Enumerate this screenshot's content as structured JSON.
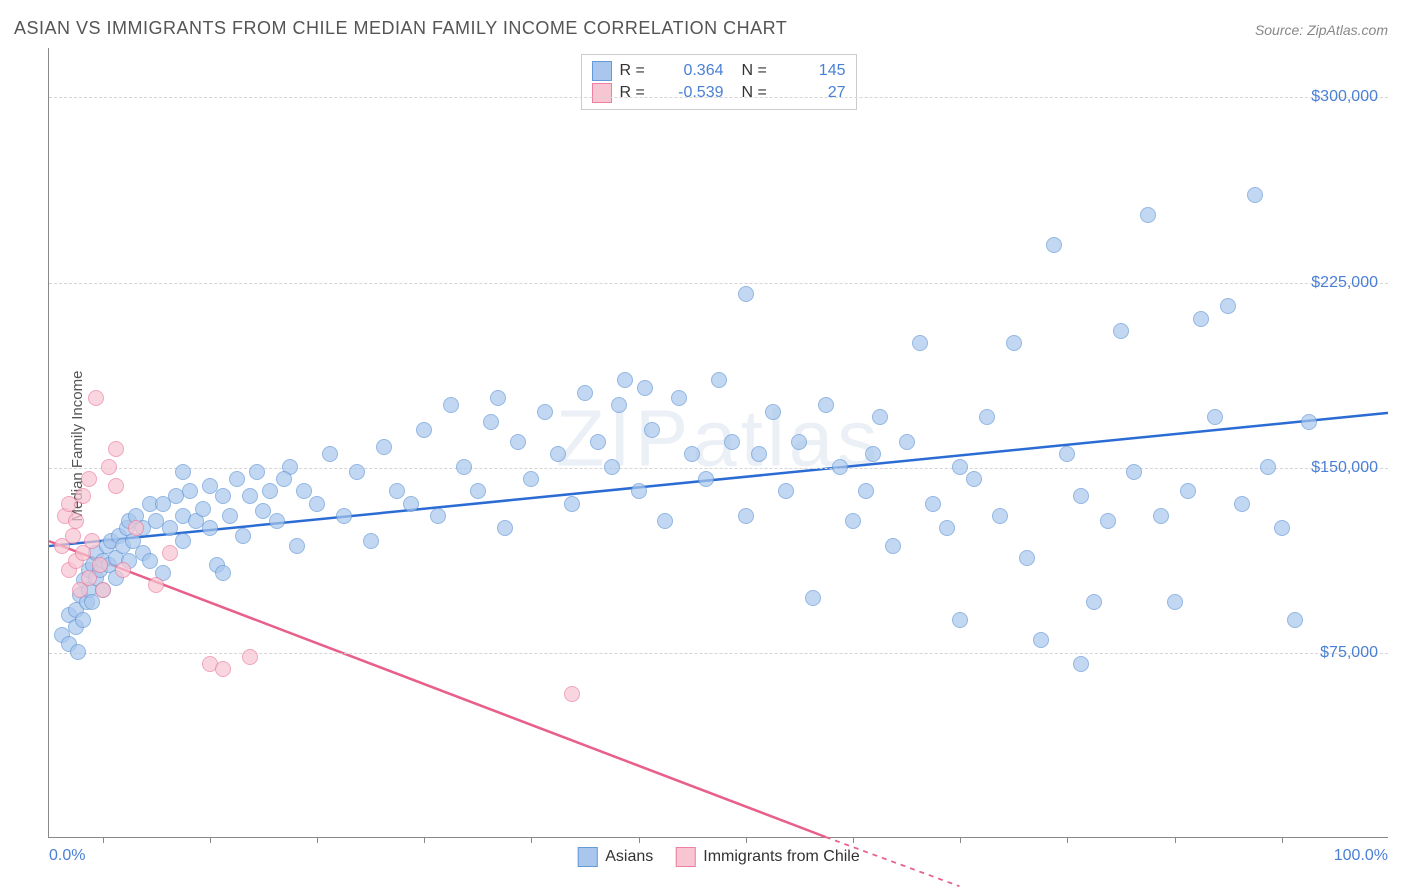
{
  "chart": {
    "type": "scatter",
    "title": "ASIAN VS IMMIGRANTS FROM CHILE MEDIAN FAMILY INCOME CORRELATION CHART",
    "source": "Source: ZipAtlas.com",
    "watermark": "ZIPatlas",
    "ylabel": "Median Family Income",
    "background_color": "#ffffff",
    "grid_color": "#d5d5d5",
    "axis_color": "#888888",
    "text_color": "#555555",
    "value_color": "#4a7fd6",
    "xlim": [
      0,
      100
    ],
    "ylim": [
      0,
      320000
    ],
    "xticks": [
      4,
      12,
      20,
      28,
      36,
      44,
      52,
      60,
      68,
      76,
      84,
      92
    ],
    "xaxis_labels": [
      {
        "pos": 0,
        "text": "0.0%"
      },
      {
        "pos": 100,
        "text": "100.0%"
      }
    ],
    "yticks": [
      {
        "v": 75000,
        "label": "$75,000"
      },
      {
        "v": 150000,
        "label": "$150,000"
      },
      {
        "v": 225000,
        "label": "$225,000"
      },
      {
        "v": 300000,
        "label": "$300,000"
      }
    ],
    "marker_radius": 8,
    "marker_stroke_width": 1.5,
    "marker_fill_opacity": 0.35,
    "trend_line_width": 2.5,
    "series": [
      {
        "name": "Asians",
        "color_fill": "#a9c7ec",
        "color_stroke": "#6699d8",
        "trend_color": "#2b6cd4",
        "R": "0.364",
        "N": "145",
        "trend": {
          "x1": 0,
          "y1": 118000,
          "x2": 100,
          "y2": 172000
        },
        "points": [
          [
            1,
            82000
          ],
          [
            1.5,
            78000
          ],
          [
            1.5,
            90000
          ],
          [
            2,
            85000
          ],
          [
            2,
            92000
          ],
          [
            2.2,
            75000
          ],
          [
            2.3,
            98000
          ],
          [
            2.5,
            88000
          ],
          [
            2.6,
            104000
          ],
          [
            2.8,
            95000
          ],
          [
            3,
            100000
          ],
          [
            3,
            108000
          ],
          [
            3.2,
            95000
          ],
          [
            3.3,
            110000
          ],
          [
            3.5,
            105000
          ],
          [
            3.5,
            115000
          ],
          [
            3.8,
            108000
          ],
          [
            4,
            112000
          ],
          [
            4,
            100000
          ],
          [
            4.3,
            118000
          ],
          [
            4.5,
            110000
          ],
          [
            4.6,
            120000
          ],
          [
            5,
            113000
          ],
          [
            5,
            105000
          ],
          [
            5.2,
            122000
          ],
          [
            5.5,
            118000
          ],
          [
            5.8,
            125000
          ],
          [
            6,
            112000
          ],
          [
            6,
            128000
          ],
          [
            6.3,
            120000
          ],
          [
            6.5,
            130000
          ],
          [
            7,
            125000
          ],
          [
            7,
            115000
          ],
          [
            7.5,
            135000
          ],
          [
            7.5,
            112000
          ],
          [
            8,
            128000
          ],
          [
            8.5,
            135000
          ],
          [
            8.5,
            107000
          ],
          [
            9,
            125000
          ],
          [
            9.5,
            138000
          ],
          [
            10,
            130000
          ],
          [
            10,
            120000
          ],
          [
            10.5,
            140000
          ],
          [
            11,
            128000
          ],
          [
            11.5,
            133000
          ],
          [
            12,
            142000
          ],
          [
            12,
            125000
          ],
          [
            12.5,
            110000
          ],
          [
            13,
            138000
          ],
          [
            13.5,
            130000
          ],
          [
            14,
            145000
          ],
          [
            14.5,
            122000
          ],
          [
            15,
            138000
          ],
          [
            15.5,
            148000
          ],
          [
            16,
            132000
          ],
          [
            16.5,
            140000
          ],
          [
            17,
            128000
          ],
          [
            18,
            150000
          ],
          [
            18.5,
            118000
          ],
          [
            19,
            140000
          ],
          [
            20,
            135000
          ],
          [
            21,
            155000
          ],
          [
            22,
            130000
          ],
          [
            23,
            148000
          ],
          [
            24,
            120000
          ],
          [
            25,
            158000
          ],
          [
            26,
            140000
          ],
          [
            27,
            135000
          ],
          [
            28,
            165000
          ],
          [
            29,
            130000
          ],
          [
            30,
            175000
          ],
          [
            31,
            150000
          ],
          [
            32,
            140000
          ],
          [
            33,
            168000
          ],
          [
            33.5,
            178000
          ],
          [
            34,
            125000
          ],
          [
            35,
            160000
          ],
          [
            36,
            145000
          ],
          [
            37,
            172000
          ],
          [
            38,
            155000
          ],
          [
            39,
            135000
          ],
          [
            40,
            180000
          ],
          [
            41,
            160000
          ],
          [
            42,
            150000
          ],
          [
            42.5,
            175000
          ],
          [
            43,
            185000
          ],
          [
            44,
            140000
          ],
          [
            45,
            165000
          ],
          [
            46,
            128000
          ],
          [
            47,
            178000
          ],
          [
            48,
            155000
          ],
          [
            49,
            145000
          ],
          [
            50,
            185000
          ],
          [
            51,
            160000
          ],
          [
            52,
            220000
          ],
          [
            52,
            130000
          ],
          [
            53,
            155000
          ],
          [
            54,
            172000
          ],
          [
            55,
            140000
          ],
          [
            56,
            160000
          ],
          [
            57,
            97000
          ],
          [
            58,
            175000
          ],
          [
            59,
            150000
          ],
          [
            60,
            128000
          ],
          [
            61,
            140000
          ],
          [
            61.5,
            155000
          ],
          [
            62,
            170000
          ],
          [
            63,
            118000
          ],
          [
            64,
            160000
          ],
          [
            65,
            200000
          ],
          [
            66,
            135000
          ],
          [
            67,
            125000
          ],
          [
            68,
            150000
          ],
          [
            68,
            88000
          ],
          [
            69,
            145000
          ],
          [
            70,
            170000
          ],
          [
            71,
            130000
          ],
          [
            72,
            200000
          ],
          [
            73,
            113000
          ],
          [
            74,
            80000
          ],
          [
            75,
            240000
          ],
          [
            76,
            155000
          ],
          [
            77,
            138000
          ],
          [
            77,
            70000
          ],
          [
            78,
            95000
          ],
          [
            79,
            128000
          ],
          [
            80,
            205000
          ],
          [
            81,
            148000
          ],
          [
            82,
            252000
          ],
          [
            83,
            130000
          ],
          [
            84,
            95000
          ],
          [
            85,
            140000
          ],
          [
            86,
            210000
          ],
          [
            87,
            170000
          ],
          [
            88,
            215000
          ],
          [
            89,
            135000
          ],
          [
            90,
            260000
          ],
          [
            91,
            150000
          ],
          [
            92,
            125000
          ],
          [
            93,
            88000
          ],
          [
            94,
            168000
          ],
          [
            10,
            148000
          ],
          [
            13,
            107000
          ],
          [
            17.5,
            145000
          ],
          [
            44.5,
            182000
          ]
        ]
      },
      {
        "name": "Immigrants from Chile",
        "color_fill": "#f7c6d2",
        "color_stroke": "#ec7fa2",
        "trend_color": "#e85f8a",
        "R": "-0.539",
        "N": "27",
        "trend": {
          "x1": 0,
          "y1": 120000,
          "x2": 58,
          "y2": 0
        },
        "trend_dashed_ext": {
          "x1": 58,
          "y1": 0,
          "x2": 68,
          "y2": -20000
        },
        "points": [
          [
            1,
            118000
          ],
          [
            1.2,
            130000
          ],
          [
            1.5,
            108000
          ],
          [
            1.5,
            135000
          ],
          [
            1.8,
            122000
          ],
          [
            2,
            128000
          ],
          [
            2,
            112000
          ],
          [
            2.3,
            100000
          ],
          [
            2.5,
            138000
          ],
          [
            2.5,
            115000
          ],
          [
            3,
            105000
          ],
          [
            3,
            145000
          ],
          [
            3.2,
            120000
          ],
          [
            3.5,
            178000
          ],
          [
            3.8,
            110000
          ],
          [
            4,
            100000
          ],
          [
            4.5,
            150000
          ],
          [
            5,
            157000
          ],
          [
            5,
            142000
          ],
          [
            5.5,
            108000
          ],
          [
            6.5,
            125000
          ],
          [
            8,
            102000
          ],
          [
            9,
            115000
          ],
          [
            12,
            70000
          ],
          [
            13,
            68000
          ],
          [
            15,
            73000
          ],
          [
            39,
            58000
          ]
        ]
      }
    ],
    "legend_bottom": [
      {
        "name": "Asians",
        "fill": "#a9c7ec",
        "stroke": "#6699d8"
      },
      {
        "name": "Immigrants from Chile",
        "fill": "#f7c6d2",
        "stroke": "#ec7fa2"
      }
    ]
  }
}
